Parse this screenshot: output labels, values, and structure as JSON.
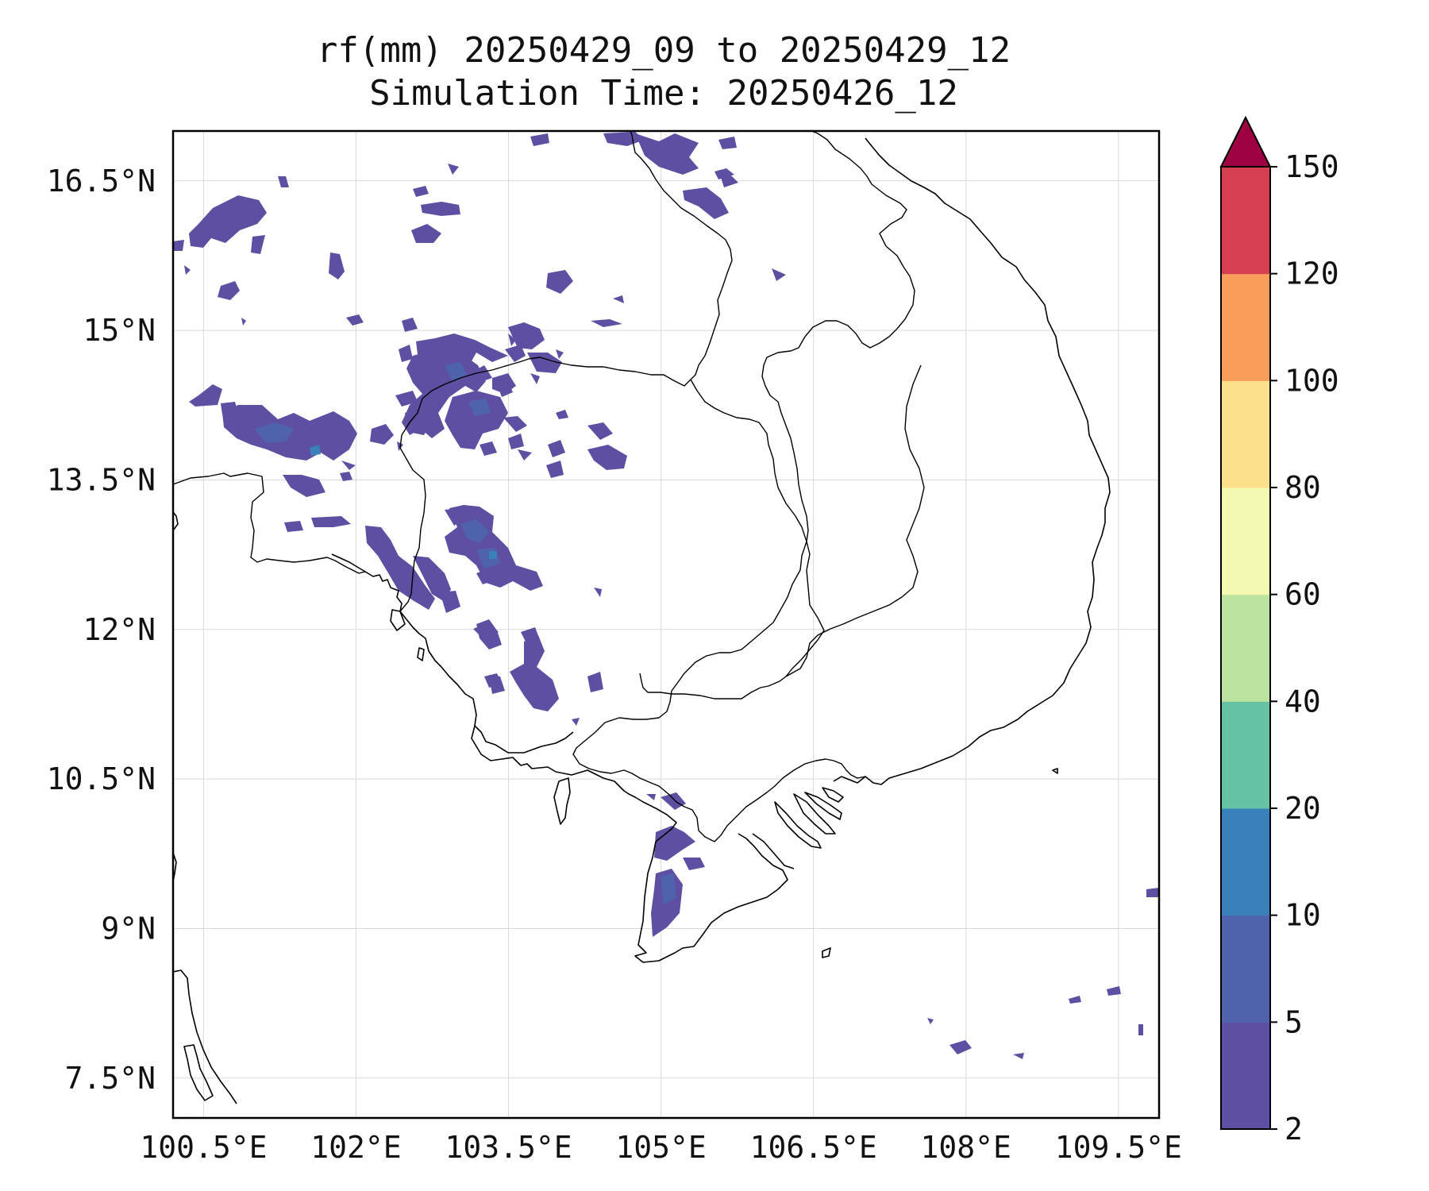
{
  "title": {
    "line1": "rf(mm) 20250429_09 to 20250429_12",
    "line2": "Simulation Time: 20250426_12"
  },
  "map": {
    "lon_range": [
      100.2,
      109.9
    ],
    "lat_range": [
      7.1,
      17.0
    ],
    "lon_ticks": [
      {
        "value": 100.5,
        "label": "100.5°E"
      },
      {
        "value": 102.0,
        "label": "102°E"
      },
      {
        "value": 103.5,
        "label": "103.5°E"
      },
      {
        "value": 105.0,
        "label": "105°E"
      },
      {
        "value": 106.5,
        "label": "106.5°E"
      },
      {
        "value": 108.0,
        "label": "108°E"
      },
      {
        "value": 109.5,
        "label": "109.5°E"
      }
    ],
    "lat_ticks": [
      {
        "value": 16.5,
        "label": "16.5°N"
      },
      {
        "value": 15.0,
        "label": "15°N"
      },
      {
        "value": 13.5,
        "label": "13.5°N"
      },
      {
        "value": 12.0,
        "label": "12°N"
      },
      {
        "value": 10.5,
        "label": "10.5°N"
      },
      {
        "value": 9.0,
        "label": "9°N"
      },
      {
        "value": 7.5,
        "label": "7.5°N"
      }
    ],
    "grid": true
  },
  "colorbar": {
    "levels": [
      "2",
      "5",
      "10",
      "20",
      "40",
      "60",
      "80",
      "100",
      "120",
      "150"
    ],
    "colors": [
      "#5e4fa2",
      "#4e63ac",
      "#3a80ba",
      "#66c2a5",
      "#bde3a0",
      "#f3f9b0",
      "#fde08b",
      "#fa9c5a",
      "#d63f50"
    ],
    "extend_color": "#9e0142",
    "extend": "max"
  },
  "rain_colors": {
    "level_2_5": "#5e4fa2",
    "level_5_10": "#4e63ac",
    "level_10_20": "#3a80ba"
  }
}
